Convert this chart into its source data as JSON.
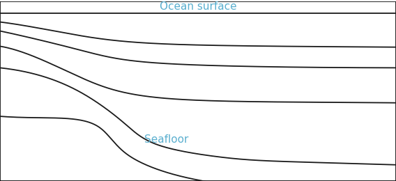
{
  "title_ocean": "Ocean surface",
  "title_seafloor": "Seafloor",
  "text_color": "#5aafcf",
  "line_color": "#1a1a1a",
  "bg_color": "#ffffff",
  "border_color": "#000000",
  "title_fontsize": 11,
  "figsize": [
    5.68,
    2.6
  ],
  "dpi": 100
}
